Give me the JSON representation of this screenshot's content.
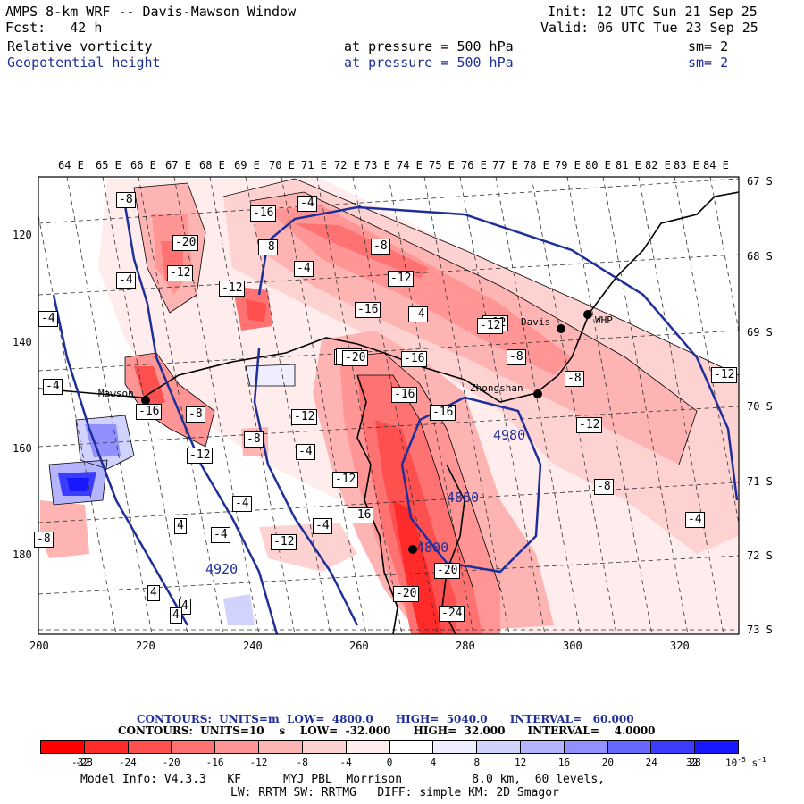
{
  "header": {
    "model": "AMPS 8-km WRF -- Davis-Mawson Window",
    "fcst_label": "Fcst:",
    "fcst_value": "42 h",
    "init": "Init: 12 UTC Sun 21 Sep 25",
    "valid": "Valid: 06 UTC Tue 23 Sep 25",
    "field1": {
      "name": "Relative vorticity",
      "level_text": "at pressure =",
      "level": "500 hPa",
      "sm": "sm= 2"
    },
    "field2": {
      "name": "Geopotential height",
      "level_text": "at pressure =",
      "level": "500 hPa",
      "sm": "sm= 2"
    }
  },
  "lon_labels": [
    "64 E",
    "65 E",
    "66 E",
    "67 E",
    "68 E",
    "69 E",
    "70 E",
    "71 E",
    "72 E",
    "73 E",
    "74 E",
    "75 E",
    "76 E",
    "77 E",
    "78 E",
    "79 E",
    "80 E",
    "81 E",
    "82 E",
    "83 E",
    "84 E"
  ],
  "lat_labels": [
    "67 S",
    "68 S",
    "69 S",
    "70 S",
    "71 S",
    "72 S",
    "73 S"
  ],
  "grid_y_labels": [
    "120",
    "140",
    "160",
    "180"
  ],
  "grid_x_labels": [
    "200",
    "220",
    "240",
    "260",
    "280",
    "300",
    "320"
  ],
  "stations": [
    {
      "name": "Davis"
    },
    {
      "name": "WHP"
    },
    {
      "name": "Zhongshan"
    },
    {
      "name": "Mawson"
    }
  ],
  "contour_labels": [
    "-8",
    "-4",
    "-16",
    "-20",
    "-12",
    "-12",
    "-16",
    "-8",
    "-4",
    "-8",
    "-12",
    "-12",
    "-4",
    "-12",
    "-20",
    "-16",
    "-8",
    "-8",
    "-4",
    "-4",
    "-12",
    "-16",
    "-12",
    "-8",
    "-12",
    "-16",
    "-8",
    "-4",
    "-12",
    "-4",
    "-8",
    "-12",
    "-4",
    "4",
    "-4",
    "4",
    "-8",
    "-12",
    "-12",
    "-16",
    "-20",
    "-20",
    "-24",
    "-20",
    "4",
    "4",
    "-4",
    "-4",
    "-16"
  ],
  "height_labels": [
    "4980",
    "4860",
    "4920",
    "4800"
  ],
  "contours_info": {
    "line1": "CONTOURS:  UNITS=m  LOW=  4800.0      HIGH=  5040.0      INTERVAL=   60.000",
    "line2": "CONTOURS:  UNITS=10    s    LOW=  -32.000      HIGH=  32.000      INTERVAL=    4.0000",
    "exp": "-5",
    "exp_unit": "-1"
  },
  "colorbar": {
    "colors": [
      "#ff0000",
      "#ff2a2a",
      "#ff5050",
      "#ff7272",
      "#ff9595",
      "#ffb4b4",
      "#ffd2d2",
      "#ffecec",
      "#ffffff",
      "#eeeeff",
      "#d2d2ff",
      "#b4b4ff",
      "#9090ff",
      "#6868ff",
      "#3c3cff",
      "#1818ff"
    ],
    "ticks": [
      "-32",
      "-28",
      "-24",
      "-20",
      "-16",
      "-12",
      "-8",
      "-4",
      "0",
      "4",
      "8",
      "12",
      "16",
      "20",
      "24",
      "28",
      "32"
    ],
    "unit": "10",
    "unit_exp": "-5",
    "unit_s": "s",
    "unit_s_exp": "-1"
  },
  "footer": {
    "line1": "Model Info: V4.3.3   KF      MYJ PBL  Morrison          8.0 km,  60 levels,",
    "line2": "LW: RRTM SW: RRTMG   DIFF: simple KM: 2D Smagor"
  }
}
